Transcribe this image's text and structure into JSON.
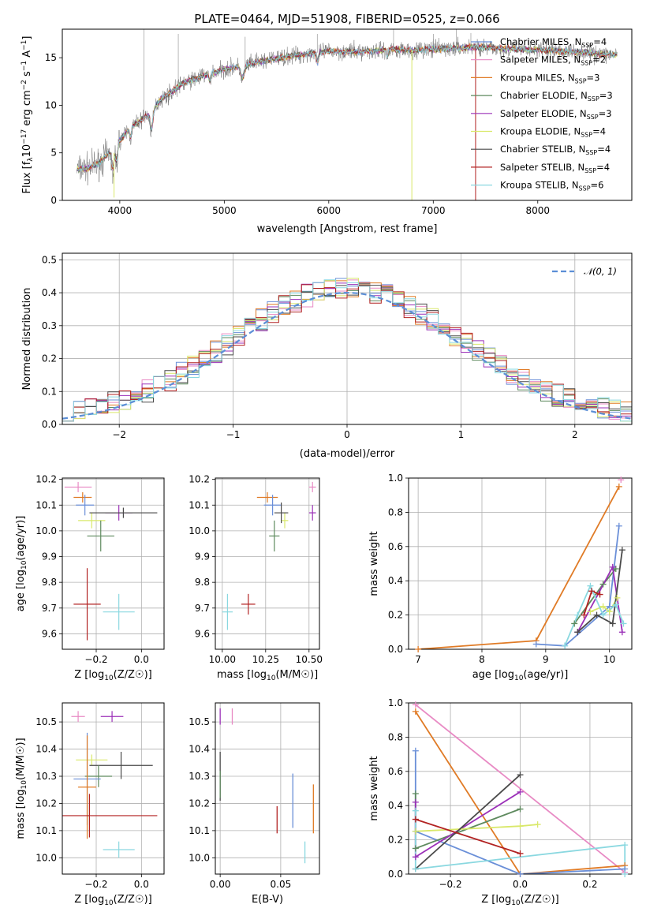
{
  "chart_data": [
    {
      "type": "line",
      "id": "spectrum",
      "title": "PLATE=0464, MJD=51908, FIBERID=0525, z=0.066",
      "xlabel": "wavelength [Angstrom, rest frame]",
      "ylabel": "Flux [f",
      "xlim": [
        3450,
        8900
      ],
      "ylim": [
        0,
        18
      ],
      "xticks": [
        "4000",
        "5000",
        "6000",
        "7000",
        "8000"
      ],
      "yticks": [
        "0",
        "5",
        "10",
        "15"
      ],
      "continuum": {
        "x": [
          3600,
          3700,
          3800,
          3900,
          4000,
          4100,
          4200,
          4300,
          4400,
          4500,
          4600,
          4800,
          5000,
          5200,
          5400,
          5600,
          5800,
          6000,
          6200,
          6400,
          6600,
          6800,
          7000,
          7200,
          7400,
          7600,
          7800,
          8000,
          8200,
          8400,
          8600,
          8750
        ],
        "y": [
          3.3,
          3.4,
          3.9,
          5.0,
          6.3,
          7.6,
          8.4,
          9.4,
          10.7,
          11.4,
          12.3,
          13.1,
          13.8,
          14.2,
          14.7,
          15.1,
          15.4,
          15.7,
          15.6,
          15.7,
          15.9,
          15.8,
          15.9,
          16.0,
          16.1,
          16.0,
          15.9,
          15.8,
          15.7,
          15.6,
          15.4,
          15.3
        ]
      },
      "series": [
        {
          "name": "Chabrier MILES, N",
          "sub": "SSP",
          "suffix": "=4",
          "color": "#6a8fd8"
        },
        {
          "name": "Salpeter MILES, N",
          "sub": "SSP",
          "suffix": "=2",
          "color": "#e88ac4"
        },
        {
          "name": "Kroupa MILES, N",
          "sub": "SSP",
          "suffix": "=3",
          "color": "#e07b26"
        },
        {
          "name": "Chabrier ELODIE, N",
          "sub": "SSP",
          "suffix": "=3",
          "color": "#5e8a5e"
        },
        {
          "name": "Salpeter ELODIE, N",
          "sub": "SSP",
          "suffix": "=3",
          "color": "#9b30b8"
        },
        {
          "name": "Kroupa ELODIE, N",
          "sub": "SSP",
          "suffix": "=4",
          "color": "#d9e86a"
        },
        {
          "name": "Chabrier STELIB, N",
          "sub": "SSP",
          "suffix": "=4",
          "color": "#4a4a4a"
        },
        {
          "name": "Salpeter STELIB, N",
          "sub": "SSP",
          "suffix": "=4",
          "color": "#b22222"
        },
        {
          "name": "Kroupa STELIB, N",
          "sub": "SSP",
          "suffix": "=6",
          "color": "#8ad8e0"
        }
      ]
    },
    {
      "type": "bar",
      "id": "residuals",
      "xlabel": "(data-model)/error",
      "ylabel": "Normed distribution",
      "xlim": [
        -2.5,
        2.5
      ],
      "ylim": [
        0,
        0.52
      ],
      "xticks": [
        "−2",
        "−1",
        "0",
        "1",
        "2"
      ],
      "yticks": [
        "0.0",
        "0.1",
        "0.2",
        "0.3",
        "0.4",
        "0.5"
      ],
      "bin_width": 0.1,
      "legend": {
        "label": "𝒩(0, 1)",
        "location": "top-right",
        "color": "#5b8ed6"
      },
      "envelope_peak": 0.4,
      "envelope_sigma": 1.0
    },
    {
      "type": "scatter",
      "id": "age-vs-Z",
      "xlabel": "Z [log",
      "ylabel": "age  [log",
      "xlim": [
        -0.35,
        0.1
      ],
      "ylim": [
        9.54,
        10.205
      ],
      "xticks": [
        "−0.2",
        "0.0"
      ],
      "yticks": [
        "9.6",
        "9.7",
        "9.8",
        "9.9",
        "10.0",
        "10.1",
        "10.2"
      ],
      "points": [
        {
          "x": -0.28,
          "y": 10.17,
          "xerr": 0.06,
          "yerr": 0.02,
          "color": "#e88ac4"
        },
        {
          "x": -0.26,
          "y": 10.13,
          "xerr": 0.04,
          "yerr": 0.02,
          "color": "#e07b26"
        },
        {
          "x": -0.25,
          "y": 10.1,
          "xerr": 0.04,
          "yerr": 0.04,
          "color": "#6a8fd8"
        },
        {
          "x": -0.22,
          "y": 10.04,
          "xerr": 0.06,
          "yerr": 0.03,
          "color": "#d9e86a"
        },
        {
          "x": -0.18,
          "y": 9.98,
          "xerr": 0.06,
          "yerr": 0.06,
          "color": "#5e8a5e"
        },
        {
          "x": -0.1,
          "y": 10.07,
          "xerr": 0.06,
          "yerr": 0.03,
          "color": "#9b30b8"
        },
        {
          "x": -0.08,
          "y": 10.07,
          "xerr": 0.15,
          "yerr": 0.02,
          "color": "#4a4a4a"
        },
        {
          "x": -0.24,
          "y": 9.715,
          "xerr": 0.06,
          "yerr": 0.14,
          "color": "#b22222"
        },
        {
          "x": -0.1,
          "y": 9.685,
          "xerr": 0.07,
          "yerr": 0.07,
          "color": "#8ad8e0"
        }
      ]
    },
    {
      "type": "scatter",
      "id": "age-vs-mass",
      "xlabel": "mass [log",
      "xlim": [
        9.96,
        10.56
      ],
      "ylim": [
        9.54,
        10.205
      ],
      "xticks": [
        "10.00",
        "10.25",
        "10.50"
      ],
      "yticks": [
        "9.6",
        "9.7",
        "9.8",
        "9.9",
        "10.0",
        "10.1",
        "10.2"
      ],
      "points": [
        {
          "x": 10.52,
          "y": 10.17,
          "xerr": 0.02,
          "yerr": 0.02,
          "color": "#e88ac4"
        },
        {
          "x": 10.26,
          "y": 10.13,
          "xerr": 0.06,
          "yerr": 0.02,
          "color": "#e07b26"
        },
        {
          "x": 10.29,
          "y": 10.1,
          "xerr": 0.05,
          "yerr": 0.04,
          "color": "#6a8fd8"
        },
        {
          "x": 10.36,
          "y": 10.04,
          "xerr": 0.02,
          "yerr": 0.03,
          "color": "#d9e86a"
        },
        {
          "x": 10.3,
          "y": 9.98,
          "xerr": 0.03,
          "yerr": 0.06,
          "color": "#5e8a5e"
        },
        {
          "x": 10.52,
          "y": 10.07,
          "xerr": 0.02,
          "yerr": 0.03,
          "color": "#9b30b8"
        },
        {
          "x": 10.34,
          "y": 10.07,
          "xerr": 0.04,
          "yerr": 0.04,
          "color": "#4a4a4a"
        },
        {
          "x": 10.15,
          "y": 9.715,
          "xerr": 0.04,
          "yerr": 0.04,
          "color": "#b22222"
        },
        {
          "x": 10.03,
          "y": 9.685,
          "xerr": 0.03,
          "yerr": 0.07,
          "color": "#8ad8e0"
        }
      ]
    },
    {
      "type": "line",
      "id": "mass-weight-vs-age",
      "xlabel": "age  [log",
      "ylabel": "mass weight",
      "xlim": [
        6.85,
        10.35
      ],
      "ylim": [
        0,
        1
      ],
      "xticks": [
        "7",
        "8",
        "9",
        "10"
      ],
      "yticks": [
        "0.0",
        "0.2",
        "0.4",
        "0.6",
        "0.8",
        "1.0"
      ],
      "series": [
        {
          "color": "#e88ac4",
          "x": [
            10.18
          ],
          "y": [
            0.99
          ]
        },
        {
          "color": "#e07b26",
          "x": [
            7.0,
            8.85,
            10.15
          ],
          "y": [
            0.0,
            0.05,
            0.95
          ]
        },
        {
          "color": "#6a8fd8",
          "x": [
            8.85,
            9.3,
            10.0,
            10.15
          ],
          "y": [
            0.03,
            0.02,
            0.25,
            0.72
          ]
        },
        {
          "color": "#5e8a5e",
          "x": [
            9.45,
            9.9,
            10.1
          ],
          "y": [
            0.15,
            0.38,
            0.47
          ]
        },
        {
          "color": "#9b30b8",
          "x": [
            9.5,
            10.05,
            10.2
          ],
          "y": [
            0.1,
            0.48,
            0.1
          ]
        },
        {
          "color": "#d9e86a",
          "x": [
            9.7,
            9.9,
            10.0,
            10.12
          ],
          "y": [
            0.22,
            0.25,
            0.22,
            0.3
          ]
        },
        {
          "color": "#4a4a4a",
          "x": [
            9.5,
            9.8,
            10.05,
            10.2
          ],
          "y": [
            0.1,
            0.2,
            0.15,
            0.58
          ]
        },
        {
          "color": "#b22222",
          "x": [
            9.6,
            9.72,
            9.85
          ],
          "y": [
            0.2,
            0.34,
            0.32
          ]
        },
        {
          "color": "#8ad8e0",
          "x": [
            9.3,
            9.5,
            9.7,
            9.9,
            10.1,
            10.22
          ],
          "y": [
            0.02,
            0.2,
            0.37,
            0.2,
            0.26,
            0.15
          ]
        }
      ]
    },
    {
      "type": "scatter",
      "id": "mass-vs-Z",
      "xlabel": "Z [log",
      "ylabel": "mass [log",
      "xlim": [
        -0.35,
        0.1
      ],
      "ylim": [
        9.94,
        10.57
      ],
      "xticks": [
        "−0.2",
        "0.0"
      ],
      "yticks": [
        "10.0",
        "10.1",
        "10.2",
        "10.3",
        "10.4",
        "10.5"
      ],
      "points": [
        {
          "x": -0.28,
          "y": 10.52,
          "xerr": 0.03,
          "yerr": 0.02,
          "color": "#e88ac4"
        },
        {
          "x": -0.13,
          "y": 10.52,
          "xerr": 0.05,
          "yerr": 0.02,
          "color": "#9b30b8"
        },
        {
          "x": -0.22,
          "y": 10.36,
          "xerr": 0.07,
          "yerr": 0.02,
          "color": "#d9e86a"
        },
        {
          "x": -0.09,
          "y": 10.34,
          "xerr": 0.14,
          "yerr": 0.05,
          "color": "#4a4a4a"
        },
        {
          "x": -0.19,
          "y": 10.3,
          "xerr": 0.06,
          "yerr": 0.04,
          "color": "#5e8a5e"
        },
        {
          "x": -0.24,
          "y": 10.29,
          "xerr": 0.06,
          "yerr": 0.17,
          "color": "#6a8fd8"
        },
        {
          "x": -0.24,
          "y": 10.26,
          "xerr": 0.04,
          "yerr": 0.19,
          "color": "#e07b26"
        },
        {
          "x": -0.23,
          "y": 10.155,
          "xerr": 0.3,
          "yerr": 0.08,
          "color": "#b22222"
        },
        {
          "x": -0.1,
          "y": 10.03,
          "xerr": 0.07,
          "yerr": 0.03,
          "color": "#8ad8e0"
        }
      ]
    },
    {
      "type": "scatter",
      "id": "mass-vs-EBV",
      "xlabel": "E(B-V)",
      "xlim": [
        -0.004,
        0.082
      ],
      "ylim": [
        9.94,
        10.57
      ],
      "xticks": [
        "0.00",
        "0.05"
      ],
      "yticks": [
        "10.0",
        "10.1",
        "10.2",
        "10.3",
        "10.4",
        "10.5"
      ],
      "points": [
        {
          "x": 0.0,
          "y": 10.52,
          "xerr": 0.0,
          "yerr": 0.03,
          "color": "#9b30b8"
        },
        {
          "x": 0.01,
          "y": 10.52,
          "xerr": 0.0,
          "yerr": 0.03,
          "color": "#e88ac4"
        },
        {
          "x": 0.0,
          "y": 10.3,
          "xerr": 0.0,
          "yerr": 0.09,
          "color": "#4a4a4a"
        },
        {
          "x": 0.0,
          "y": 10.27,
          "xerr": 0.0,
          "yerr": 0.05,
          "color": "#5e8a5e"
        },
        {
          "x": 0.06,
          "y": 10.21,
          "xerr": 0.0,
          "yerr": 0.1,
          "color": "#6a8fd8"
        },
        {
          "x": 0.077,
          "y": 10.18,
          "xerr": 0.0,
          "yerr": 0.09,
          "color": "#e07b26"
        },
        {
          "x": 0.047,
          "y": 10.14,
          "xerr": 0.0,
          "yerr": 0.05,
          "color": "#b22222"
        },
        {
          "x": 0.07,
          "y": 10.02,
          "xerr": 0.0,
          "yerr": 0.04,
          "color": "#8ad8e0"
        }
      ]
    },
    {
      "type": "line",
      "id": "mass-weight-vs-Z",
      "xlabel": "Z [log",
      "ylabel": "mass weight",
      "xlim": [
        -0.32,
        0.32
      ],
      "ylim": [
        0,
        1
      ],
      "xticks": [
        "−0.2",
        "0.0",
        "0.2"
      ],
      "yticks": [
        "0.0",
        "0.2",
        "0.4",
        "0.6",
        "0.8",
        "1.0"
      ],
      "series": [
        {
          "color": "#e88ac4",
          "x": [
            -0.3,
            0.3
          ],
          "y": [
            0.99,
            0.01
          ]
        },
        {
          "color": "#e07b26",
          "x": [
            -0.3,
            0.0,
            0.3
          ],
          "y": [
            0.95,
            0.0,
            0.05
          ]
        },
        {
          "color": "#6a8fd8",
          "x": [
            -0.3,
            -0.3,
            0.0,
            0.3
          ],
          "y": [
            0.72,
            0.25,
            0.0,
            0.03
          ]
        },
        {
          "color": "#5e8a5e",
          "x": [
            -0.3,
            -0.3,
            0.0
          ],
          "y": [
            0.47,
            0.15,
            0.38
          ]
        },
        {
          "color": "#9b30b8",
          "x": [
            -0.3,
            -0.3,
            0.0
          ],
          "y": [
            0.42,
            0.1,
            0.48
          ]
        },
        {
          "color": "#d9e86a",
          "x": [
            -0.3,
            0.0,
            0.05
          ],
          "y": [
            0.25,
            0.28,
            0.29
          ]
        },
        {
          "color": "#4a4a4a",
          "x": [
            -0.3,
            0.0
          ],
          "y": [
            0.03,
            0.58
          ]
        },
        {
          "color": "#b22222",
          "x": [
            -0.3,
            0.0
          ],
          "y": [
            0.32,
            0.12
          ]
        },
        {
          "color": "#8ad8e0",
          "x": [
            -0.3,
            -0.3,
            0.3,
            0.3
          ],
          "y": [
            0.37,
            0.03,
            0.17,
            0.0
          ]
        }
      ]
    }
  ]
}
